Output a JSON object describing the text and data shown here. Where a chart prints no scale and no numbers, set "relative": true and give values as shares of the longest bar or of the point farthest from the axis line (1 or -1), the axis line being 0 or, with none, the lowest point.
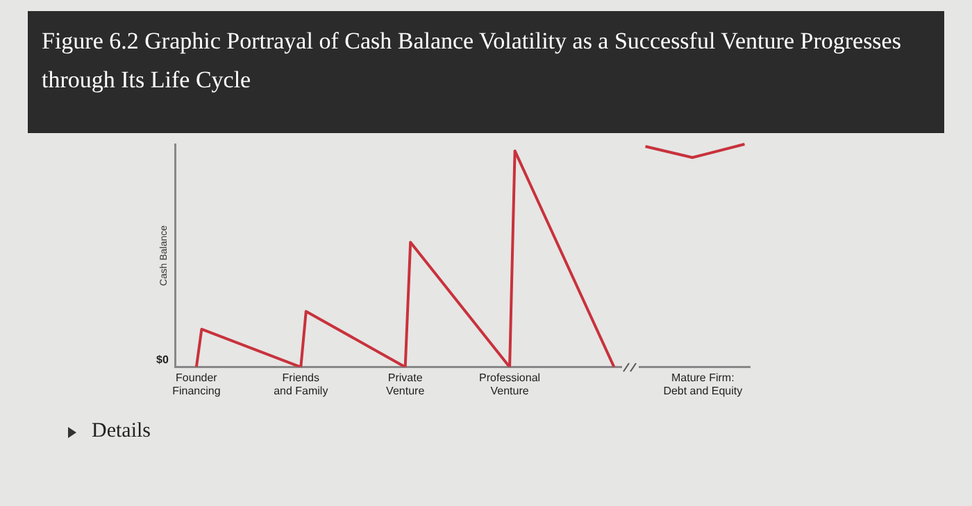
{
  "chart_data": {
    "type": "line",
    "title": "Figure 6.2 Graphic Portrayal of Cash Balance Volatility as a Successful Venture Progresses through Its Life Cycle",
    "ylabel": "Cash Balance",
    "relative": true,
    "grid": false,
    "legend": false,
    "marker": "none",
    "line_style": "solid",
    "categories": [
      null,
      null,
      null,
      null,
      "Founder Financing",
      null,
      null,
      null,
      null,
      null,
      null,
      null,
      null,
      null,
      null,
      null,
      null,
      null,
      null,
      null,
      null,
      null,
      null,
      null,
      "Friends and Family",
      null,
      null,
      null,
      null,
      null,
      null,
      null,
      null,
      null,
      null,
      null,
      null,
      null,
      null,
      null,
      null,
      null,
      null,
      null,
      "Private Venture",
      null,
      null,
      null,
      null,
      null,
      null,
      null,
      null,
      null,
      null,
      null,
      null,
      null,
      null,
      null,
      null,
      null,
      null,
      null,
      "Professional Venture",
      null,
      null,
      null,
      null,
      null,
      null,
      null,
      null,
      null,
      null,
      null,
      null,
      null,
      null,
      null,
      null,
      null,
      null,
      null,
      null,
      null,
      null,
      null,
      null,
      null,
      null,
      null,
      null,
      null,
      null,
      null,
      null,
      null,
      null,
      null,
      null,
      "Mature Firm: Debt and Equity",
      null,
      null,
      null,
      null,
      null,
      null,
      null,
      null,
      null
    ],
    "series": [
      {
        "color": "#c8323c",
        "values": [
          null,
          null,
          null,
          null,
          0,
          0.17,
          null,
          null,
          null,
          null,
          null,
          null,
          null,
          null,
          null,
          null,
          null,
          null,
          null,
          null,
          null,
          null,
          null,
          null,
          0,
          0.25,
          null,
          null,
          null,
          null,
          null,
          null,
          null,
          null,
          null,
          null,
          null,
          null,
          null,
          null,
          null,
          null,
          null,
          null,
          0,
          0.56,
          null,
          null,
          null,
          null,
          null,
          null,
          null,
          null,
          null,
          null,
          null,
          null,
          null,
          null,
          null,
          null,
          null,
          null,
          0,
          0.97,
          null,
          null,
          null,
          null,
          null,
          null,
          null,
          null,
          null,
          null,
          null,
          null,
          null,
          null,
          null,
          null,
          null,
          null,
          0,
          null,
          null,
          null,
          null,
          null,
          null,
          null,
          null,
          null,
          null,
          null,
          null,
          null,
          null,
          null,
          null,
          null,
          null,
          null,
          null,
          null,
          null,
          null,
          null,
          null,
          null
        ]
      },
      {
        "color": "#c8323c",
        "values": [
          null,
          null,
          null,
          null,
          null,
          null,
          null,
          null,
          null,
          null,
          null,
          null,
          null,
          null,
          null,
          null,
          null,
          null,
          null,
          null,
          null,
          null,
          null,
          null,
          null,
          null,
          null,
          null,
          null,
          null,
          null,
          null,
          null,
          null,
          null,
          null,
          null,
          null,
          null,
          null,
          null,
          null,
          null,
          null,
          null,
          null,
          null,
          null,
          null,
          null,
          null,
          null,
          null,
          null,
          null,
          null,
          null,
          null,
          null,
          null,
          null,
          null,
          null,
          null,
          null,
          null,
          null,
          null,
          null,
          null,
          null,
          null,
          null,
          null,
          null,
          null,
          null,
          null,
          null,
          null,
          null,
          null,
          null,
          null,
          null,
          null,
          null,
          null,
          null,
          null,
          0.99,
          null,
          null,
          null,
          null,
          null,
          null,
          null,
          null,
          0.94,
          null,
          null,
          null,
          null,
          null,
          null,
          null,
          null,
          null,
          1.0,
          null
        ]
      }
    ],
    "annotations": [
      "$0",
      "Details"
    ]
  }
}
